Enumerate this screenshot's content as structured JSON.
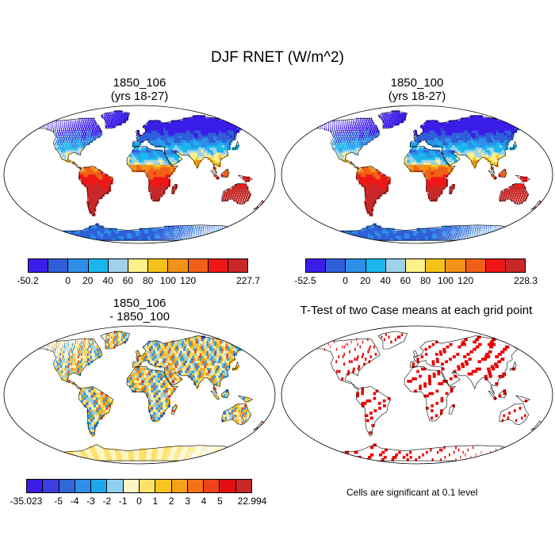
{
  "figure": {
    "title": "DJF RNET (W/m^2)"
  },
  "panels": [
    {
      "title_line1": "1850_106",
      "title_line2": "(yrs 18-27)"
    },
    {
      "title_line1": "1850_100",
      "title_line2": "(yrs 18-27)"
    },
    {
      "title_line1": "1850_106",
      "title_line2": "- 1850_100"
    },
    {
      "title_line1": "T-Test of two Case means at each grid point",
      "title_line2": ""
    }
  ],
  "colorbars": {
    "abs_colors": [
      "#3b1de8",
      "#2f5fd8",
      "#2f8ee8",
      "#19b7ee",
      "#9fd1ea",
      "#fbf08a",
      "#f5c21a",
      "#f29318",
      "#f06016",
      "#f01616",
      "#c82828"
    ],
    "diff_colors": [
      "#3b1de8",
      "#3c3ee0",
      "#2f67d6",
      "#2f8ee8",
      "#1ea8ec",
      "#8fd0ef",
      "#fdf6c2",
      "#fde16a",
      "#f9c51f",
      "#f5a217",
      "#f27318",
      "#f0431a",
      "#e01010",
      "#c82828"
    ],
    "cb1_ticks": [
      "-50.2",
      "0",
      "20",
      "40",
      "60",
      "80",
      "100",
      "120",
      "227.7"
    ],
    "cb2_ticks": [
      "-52.5",
      "0",
      "20",
      "40",
      "60",
      "80",
      "100",
      "120",
      "228.3"
    ],
    "cb3_ticks": [
      "-35.023",
      "-5",
      "-4",
      "-3",
      "-2",
      "-1",
      "0",
      "1",
      "2",
      "3",
      "4",
      "5",
      "22.994"
    ]
  },
  "note": "Cells are significant at 0.1 level",
  "colors": {
    "ocean": "#ffffff",
    "sig": "#e80000"
  }
}
